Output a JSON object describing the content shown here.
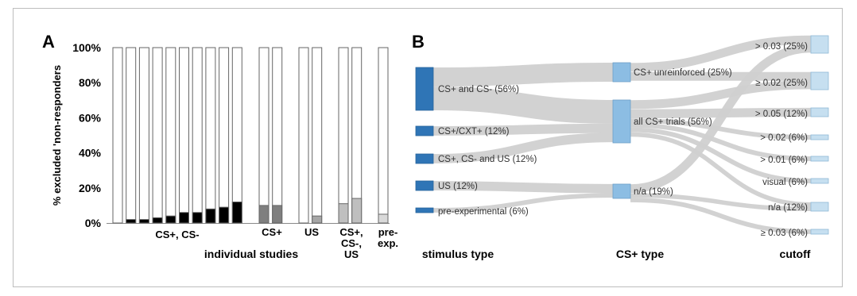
{
  "chart_data": [
    {
      "panel": "A",
      "type": "bar",
      "ylabel": "% excluded 'non-responders",
      "xlabel": "individual studies",
      "ylim": [
        0,
        100
      ],
      "yticks": [
        "0%",
        "20%",
        "40%",
        "60%",
        "80%",
        "100%"
      ],
      "stacked_total": 100,
      "colors": {
        "empty": "#ffffff",
        "outline": "#666666",
        "CS+, CS-": "#000000",
        "CS+": "#7f7f7f",
        "US": "#a6a6a6",
        "CS+, CS-, US": "#bfbfbf",
        "pre-exp.": "#d9d9d9"
      },
      "groups": [
        {
          "label": "CS+, CS-",
          "values": [
            0,
            2,
            2,
            3,
            4,
            6,
            6,
            8,
            9,
            12
          ]
        },
        {
          "label": "CS+",
          "values": [
            10,
            10
          ]
        },
        {
          "label": "US",
          "values": [
            0,
            4
          ]
        },
        {
          "label": "CS+, CS-, US",
          "label_lines": [
            "CS+,",
            "CS-,",
            "US"
          ],
          "values": [
            11,
            14
          ]
        },
        {
          "label": "pre-exp.",
          "label_lines": [
            "pre-",
            "exp."
          ],
          "values": [
            5
          ]
        }
      ]
    },
    {
      "panel": "B",
      "type": "sankey",
      "columns": [
        "stimulus type",
        "CS+ type",
        "cutoff"
      ],
      "colors": {
        "stimulus": "#2f75b6",
        "cstype": "#8cbde3",
        "cutoff": "#c6dff0",
        "link": "#d0d0d0"
      },
      "nodes": {
        "stimulus": [
          {
            "label": "CS+ and CS- (56%)",
            "value": 56
          },
          {
            "label": "CS+/CXT+ (12%)",
            "value": 12
          },
          {
            "label": "CS+, CS- and US (12%)",
            "value": 12
          },
          {
            "label": "US (12%)",
            "value": 12
          },
          {
            "label": "pre-experimental (6%)",
            "value": 6
          }
        ],
        "cstype": [
          {
            "label": "CS+ unreinforced (25%)",
            "value": 25
          },
          {
            "label": "all CS+ trials (56%)",
            "value": 56
          },
          {
            "label": "n/a (19%)",
            "value": 19
          }
        ],
        "cutoff": [
          {
            "label": "> 0.03 (25%)",
            "value": 25
          },
          {
            "label": "≥ 0.02 (25%)",
            "value": 25
          },
          {
            "label": "> 0.05 (12%)",
            "value": 12
          },
          {
            "label": "> 0.02 (6%)",
            "value": 6
          },
          {
            "label": "> 0.01 (6%)",
            "value": 6
          },
          {
            "label": "visual (6%)",
            "value": 6
          },
          {
            "label": "n/a (12%)",
            "value": 12
          },
          {
            "label": "≥ 0.03 (6%)",
            "value": 6
          }
        ]
      },
      "links_stimulus_to_cstype": [
        {
          "source": 0,
          "target": 0,
          "value": 25
        },
        {
          "source": 0,
          "target": 1,
          "value": 31
        },
        {
          "source": 1,
          "target": 1,
          "value": 12
        },
        {
          "source": 2,
          "target": 1,
          "value": 12
        },
        {
          "source": 3,
          "target": 2,
          "value": 12
        },
        {
          "source": 4,
          "target": 2,
          "value": 6
        }
      ],
      "links_cstype_to_cutoff": [
        {
          "source": 0,
          "target": 0,
          "value": 12
        },
        {
          "source": 0,
          "target": 1,
          "value": 12
        },
        {
          "source": 1,
          "target": 1,
          "value": 12
        },
        {
          "source": 1,
          "target": 2,
          "value": 12
        },
        {
          "source": 1,
          "target": 3,
          "value": 6
        },
        {
          "source": 1,
          "target": 4,
          "value": 6
        },
        {
          "source": 1,
          "target": 5,
          "value": 6
        },
        {
          "source": 1,
          "target": 6,
          "value": 6
        },
        {
          "source": 2,
          "target": 0,
          "value": 12
        },
        {
          "source": 2,
          "target": 6,
          "value": 6
        },
        {
          "source": 2,
          "target": 7,
          "value": 6
        }
      ]
    }
  ]
}
